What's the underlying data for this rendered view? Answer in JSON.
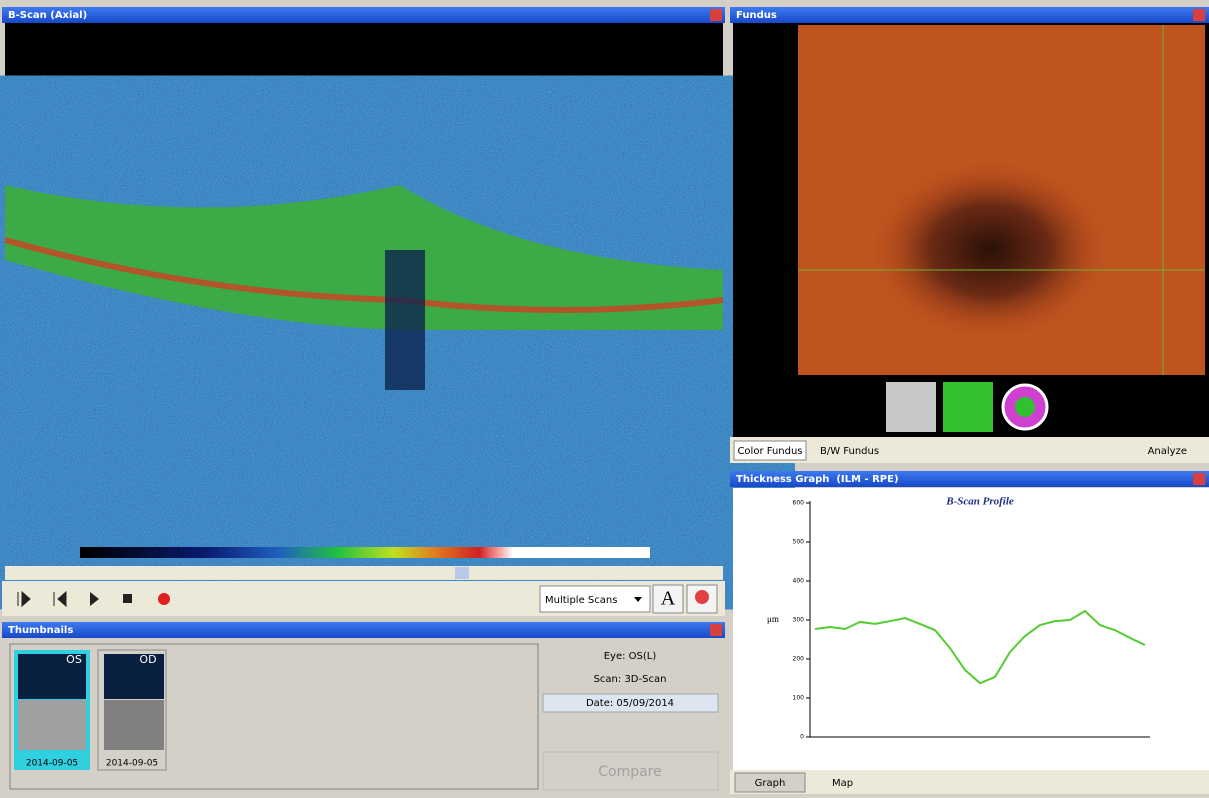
{
  "bscan_panel": {
    "title": "B-Scan (Axial)"
  },
  "toolbar": {
    "scan_mode": "Multiple Scans",
    "font_button": "A"
  },
  "thumbnails_panel": {
    "title": "Thumbnails",
    "items": [
      {
        "eye": "OS",
        "date": "2014-09-05"
      },
      {
        "eye": "OD",
        "date": "2014-09-05"
      }
    ],
    "info": {
      "eye": "Eye: OS(L)",
      "scan": "Scan: 3D-Scan",
      "date": "Date: 05/09/2014"
    },
    "compare_button": "Compare"
  },
  "fundus_panel": {
    "title": "Fundus",
    "tabs": [
      "Color Fundus",
      "B/W Fundus"
    ],
    "analyze": "Analyze"
  },
  "thickness_panel": {
    "title": "Thickness Graph  (ILM - RPE)",
    "tabs": [
      "Graph",
      "Map"
    ]
  },
  "chart_data": {
    "type": "line",
    "title": "B-Scan Profile",
    "y_label": "μm",
    "values": [
      277,
      282,
      277,
      295,
      290,
      297,
      305,
      290,
      274,
      228,
      172,
      138,
      154,
      218,
      259,
      287,
      297,
      300,
      323,
      287,
      274,
      254,
      236
    ],
    "color": "#55cc33",
    "ylim": [
      0,
      600
    ],
    "yticks": [
      0,
      100,
      200,
      300,
      400,
      500,
      600
    ]
  }
}
